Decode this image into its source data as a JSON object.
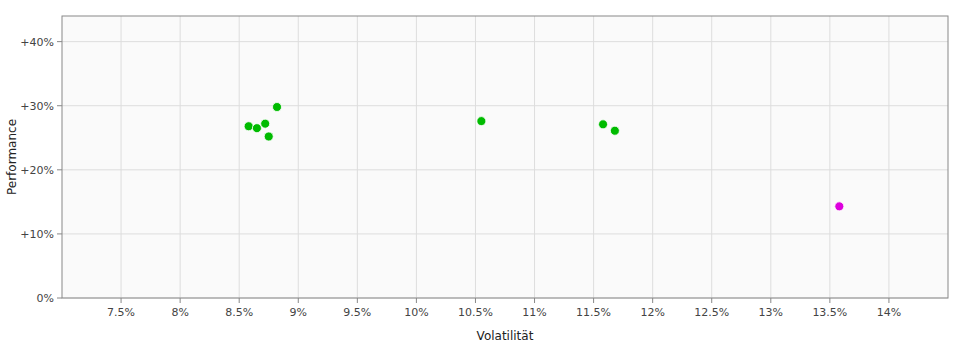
{
  "chart_data": {
    "type": "scatter",
    "x_label": "Volatilität",
    "y_label": "Performance",
    "xlim": [
      0.07,
      0.145
    ],
    "ylim": [
      0.0,
      0.44
    ],
    "xticks": [
      {
        "value": 0.075,
        "label": "7.5%"
      },
      {
        "value": 0.08,
        "label": "8%"
      },
      {
        "value": 0.085,
        "label": "8.5%"
      },
      {
        "value": 0.09,
        "label": "9%"
      },
      {
        "value": 0.095,
        "label": "9.5%"
      },
      {
        "value": 0.1,
        "label": "10%"
      },
      {
        "value": 0.105,
        "label": "10.5%"
      },
      {
        "value": 0.11,
        "label": "11%"
      },
      {
        "value": 0.115,
        "label": "11.5%"
      },
      {
        "value": 0.12,
        "label": "12%"
      },
      {
        "value": 0.125,
        "label": "12.5%"
      },
      {
        "value": 0.13,
        "label": "13%"
      },
      {
        "value": 0.135,
        "label": "13.5%"
      },
      {
        "value": 0.14,
        "label": "14%"
      }
    ],
    "yticks": [
      {
        "value": 0.0,
        "label": "0%"
      },
      {
        "value": 0.1,
        "label": "+10%"
      },
      {
        "value": 0.2,
        "label": "+20%"
      },
      {
        "value": 0.3,
        "label": "+30%"
      },
      {
        "value": 0.4,
        "label": "+40%"
      }
    ],
    "grid": true,
    "series": [
      {
        "color": "#00bb00",
        "x": [
          0.0882,
          0.0872,
          0.0858,
          0.0865,
          0.0875,
          0.1055,
          0.1158,
          0.1168
        ],
        "values": [
          0.298,
          0.272,
          0.268,
          0.265,
          0.252,
          0.276,
          0.271,
          0.261
        ]
      },
      {
        "color": "#dd00dd",
        "x": [
          0.1358
        ],
        "values": [
          0.143
        ]
      }
    ]
  }
}
